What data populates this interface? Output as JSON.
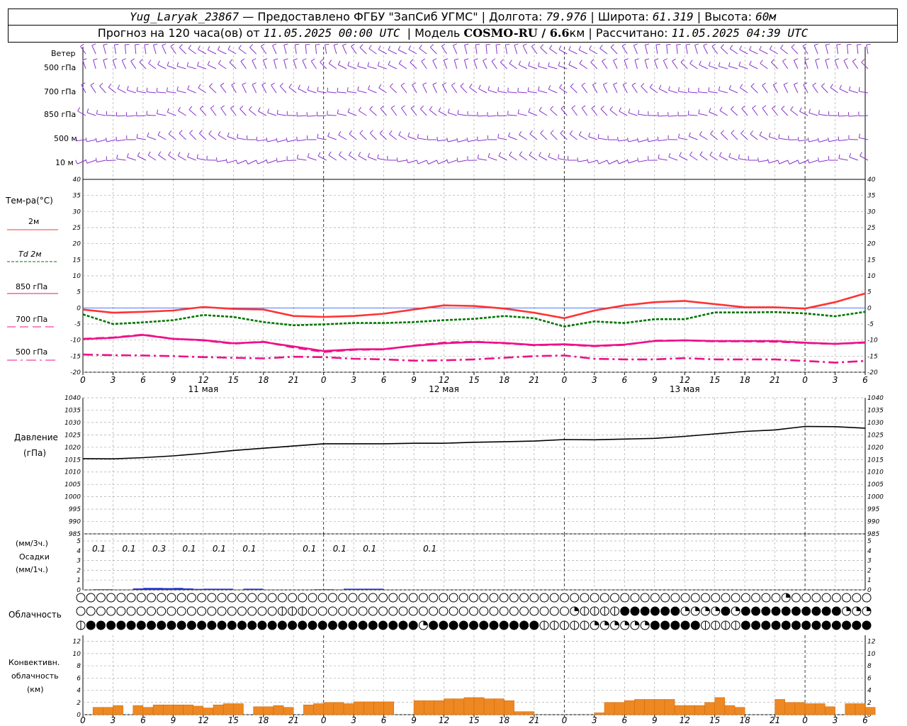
{
  "header": {
    "station": "Yug_Laryak_23867",
    "provider": "— Предоставлено ФГБУ \"ЗапСиб УГМС\"",
    "lon_label": "Долгота:",
    "lon": "79.976",
    "lat_label": "Широта:",
    "lat": "61.319",
    "alt_label": "Высота:",
    "alt": "60м",
    "forecast_label": "Прогноз на 120 часа(ов) от",
    "forecast_start": "11.05.2025 00:00 UTC",
    "model_label": "Модель",
    "model": "COSMO-RU / 6.6",
    "model_unit": "км",
    "calc_label": "Рассчитано:",
    "calc_time": "11.05.2025 04:39 UTC"
  },
  "wind_panel": {
    "title": "Ветер",
    "levels": [
      "500 гПа",
      "700 гПа",
      "850 гПа",
      "500 м",
      "10  м"
    ]
  },
  "temp_panel": {
    "title": "Тем-ра(°С)",
    "legend": [
      {
        "label": "2м",
        "color": "#ff3333",
        "dash": ""
      },
      {
        "label": "Td  2м",
        "color": "#007700",
        "dash": "4,2"
      },
      {
        "label": "850  гПа",
        "color": "#ee1188",
        "dash": ""
      },
      {
        "label": "700  гПа",
        "color": "#ee1188",
        "dash": "12,6"
      },
      {
        "label": "500  гПа",
        "color": "#ee1188",
        "dash": "14,5,3,5"
      }
    ]
  },
  "time_axis": {
    "hour_labels": [
      "0",
      "3",
      "6",
      "9",
      "12",
      "15",
      "18",
      "21",
      "0",
      "3",
      "6",
      "9",
      "12",
      "15",
      "18",
      "21",
      "0",
      "3",
      "6",
      "9",
      "12",
      "15",
      "18",
      "21",
      "0",
      "3",
      "6"
    ],
    "dates": [
      "11 мая",
      "12 мая",
      "13 мая"
    ]
  },
  "pressure_panel": {
    "title": "Давление",
    "unit": "(гПа)"
  },
  "precip_panel": {
    "unit_3h": "(мм/3ч.)",
    "title": "Осадки",
    "unit_1h": "(мм/1ч.)",
    "amounts": [
      {
        "hour": 0.5,
        "text": "0.1"
      },
      {
        "hour": 3.5,
        "text": "0.1"
      },
      {
        "hour": 6.5,
        "text": "0.3"
      },
      {
        "hour": 9.5,
        "text": "0.1"
      },
      {
        "hour": 12.5,
        "text": "0.1"
      },
      {
        "hour": 15.5,
        "text": "0.1"
      },
      {
        "hour": 21.5,
        "text": "0.1"
      },
      {
        "hour": 24.5,
        "text": "0.1"
      },
      {
        "hour": 27.5,
        "text": "0.1"
      },
      {
        "hour": 33.5,
        "text": "0.1"
      }
    ]
  },
  "cloud_panel": {
    "title": "Облачность"
  },
  "conv_panel": {
    "title_1": "Конвективн.",
    "title_2": "облачность",
    "unit": "(км)"
  },
  "chart_data": [
    {
      "type": "line",
      "title": "Тем-ра(°С)",
      "x_hours": [
        0,
        3,
        6,
        9,
        12,
        15,
        18,
        21,
        24,
        27,
        30,
        33,
        36,
        39,
        42,
        45,
        48,
        51,
        54,
        57,
        60,
        63,
        66,
        69,
        72,
        75,
        78
      ],
      "ylim": [
        -20,
        40
      ],
      "yticks": [
        -20,
        -15,
        -10,
        -5,
        0,
        5,
        10,
        15,
        20,
        25,
        30,
        35,
        40
      ],
      "series": [
        {
          "name": "2м",
          "values": [
            -0.5,
            -1.5,
            -1.2,
            -0.8,
            0.3,
            -0.3,
            -0.5,
            -2.5,
            -2.8,
            -2.5,
            -1.8,
            -0.5,
            0.8,
            0.6,
            -0.2,
            -1.5,
            -3.2,
            -0.8,
            0.8,
            1.8,
            2.2,
            1.2,
            0.2,
            0.2,
            -0.2,
            1.8,
            4.5
          ]
        },
        {
          "name": "Td  2м",
          "values": [
            -2,
            -5,
            -4.5,
            -3.8,
            -2.2,
            -2.8,
            -4.4,
            -5.4,
            -5.1,
            -4.7,
            -4.7,
            -4.4,
            -3.8,
            -3.4,
            -2.5,
            -3.2,
            -5.8,
            -4.2,
            -4.7,
            -3.5,
            -3.5,
            -1.4,
            -1.4,
            -1.3,
            -1.7,
            -2.6,
            -1.2
          ]
        },
        {
          "name": "850  гПа",
          "values": [
            -9.7,
            -9.3,
            -8.4,
            -9.6,
            -10,
            -11,
            -10.6,
            -12,
            -13.4,
            -12.9,
            -12.8,
            -11.8,
            -11,
            -10.6,
            -10.9,
            -11.5,
            -11.3,
            -11.8,
            -11.4,
            -10.3,
            -10.1,
            -10.3,
            -10.3,
            -10.3,
            -10.8,
            -11.2,
            -10.7
          ]
        },
        {
          "name": "700  гПа",
          "values": [
            -9.6,
            -9.2,
            -8.3,
            -9.6,
            -10.1,
            -11.1,
            -10.5,
            -12.3,
            -13.7,
            -13,
            -12.9,
            -11.7,
            -10.8,
            -10.5,
            -11,
            -11.6,
            -11.4,
            -11.9,
            -11.5,
            -10.2,
            -10.1,
            -10.4,
            -10.4,
            -10.5,
            -10.9,
            -11.2,
            -10.8
          ]
        },
        {
          "name": "500  гПа",
          "values": [
            -14.5,
            -14.7,
            -14.8,
            -15,
            -15.3,
            -15.5,
            -15.7,
            -15.2,
            -15.3,
            -15.8,
            -16,
            -16.4,
            -16.3,
            -16,
            -15.5,
            -15,
            -14.8,
            -15.8,
            -16,
            -16,
            -15.6,
            -16,
            -16,
            -16,
            -16.5,
            -17,
            -16.5
          ]
        }
      ]
    },
    {
      "type": "line",
      "title": "Давление",
      "ylabel": "(гПа)",
      "x_hours": [
        0,
        3,
        6,
        9,
        12,
        15,
        18,
        21,
        24,
        27,
        30,
        33,
        36,
        39,
        42,
        45,
        48,
        51,
        54,
        57,
        60,
        63,
        66,
        69,
        72,
        75,
        78
      ],
      "ylim": [
        985,
        1040
      ],
      "yticks": [
        985,
        990,
        995,
        1000,
        1005,
        1010,
        1015,
        1020,
        1025,
        1030,
        1035,
        1040
      ],
      "series": [
        {
          "name": "Давление",
          "values": [
            1015.4,
            1015.3,
            1015.8,
            1016.5,
            1017.5,
            1018.7,
            1019.6,
            1020.5,
            1021.4,
            1021.4,
            1021.4,
            1021.6,
            1021.6,
            1022.0,
            1022.2,
            1022.5,
            1023.1,
            1023.0,
            1023.3,
            1023.6,
            1024.4,
            1025.4,
            1026.4,
            1027.0,
            1028.4,
            1028.3,
            1027.7
          ]
        }
      ]
    },
    {
      "type": "bar",
      "title": "Осадки",
      "ylabel": "(мм/1ч.)",
      "ylim": [
        0,
        5
      ],
      "hours": [
        2,
        3,
        4,
        5,
        6,
        7,
        8,
        9,
        10,
        11,
        12,
        13,
        14,
        15,
        16,
        17,
        18,
        19,
        20,
        21,
        22,
        23,
        24,
        25,
        26,
        27,
        28,
        29,
        30,
        31,
        32,
        33,
        34,
        35,
        36,
        37,
        38,
        39,
        40,
        41,
        42,
        43,
        44,
        45,
        46,
        47,
        48,
        49,
        50,
        51,
        52,
        53,
        54,
        55,
        56,
        57,
        58,
        59,
        60,
        61,
        62,
        63,
        64,
        65,
        66,
        67,
        68,
        69,
        70,
        71,
        72,
        73,
        74,
        75,
        76,
        77,
        78
      ],
      "values": [
        0.06,
        0.06,
        0.03,
        0.03,
        0.15,
        0.2,
        0.2,
        0.18,
        0.2,
        0.15,
        0.1,
        0.12,
        0.12,
        0.12,
        0.03,
        0.12,
        0.12,
        0.03,
        0.02,
        0.0,
        0.0,
        0.0,
        0.06,
        0.06,
        0.04,
        0.12,
        0.12,
        0.12,
        0.12,
        0.02,
        0.0,
        0.0,
        0.0,
        0.03,
        0.03,
        0.0,
        0.0,
        0.0,
        0.0,
        0.0,
        0.0,
        0.0,
        0.0,
        0.0,
        0.0,
        0.0,
        0.0,
        0.0,
        0.0,
        0.0,
        0.0,
        0.0,
        0.0,
        0.0,
        0.0,
        0.0,
        0.0,
        0.0,
        0.03,
        0.0,
        0.0,
        0.0,
        0.0,
        0.0,
        0.0,
        0.0,
        0.0,
        0.0,
        0.0,
        0.0,
        0.0,
        0.0,
        0.0,
        0.0,
        0.0,
        0.0,
        0.0
      ]
    },
    {
      "type": "bar",
      "title": "Конвективн. облачность",
      "ylabel": "(км)",
      "ylim": [
        0,
        13
      ],
      "hours": [
        0,
        1,
        2,
        3,
        4,
        5,
        6,
        7,
        8,
        9,
        10,
        11,
        12,
        13,
        14,
        15,
        16,
        17,
        18,
        19,
        20,
        21,
        22,
        23,
        24,
        25,
        26,
        27,
        28,
        29,
        30,
        31,
        32,
        33,
        34,
        35,
        36,
        37,
        38,
        39,
        40,
        41,
        42,
        43,
        44,
        45,
        46,
        47,
        48,
        49,
        50,
        51,
        52,
        53,
        54,
        55,
        56,
        57,
        58,
        59,
        60,
        61,
        62,
        63,
        64,
        65,
        66,
        67,
        68,
        69,
        70,
        71,
        72,
        73,
        74,
        75,
        76,
        77,
        78
      ],
      "values": [
        0,
        1.2,
        1.2,
        1.5,
        0,
        1.5,
        1.2,
        1.6,
        1.6,
        1.6,
        1.6,
        1.4,
        1.1,
        1.6,
        1.8,
        1.8,
        0,
        1.3,
        1.3,
        1.5,
        1.2,
        0,
        1.6,
        1.8,
        2.0,
        2.0,
        1.8,
        2.1,
        2.1,
        2.1,
        2.1,
        0,
        0,
        2.3,
        2.3,
        2.3,
        2.6,
        2.6,
        2.8,
        2.8,
        2.6,
        2.6,
        2.3,
        0.5,
        0.5,
        0,
        0,
        0,
        0,
        0,
        0,
        0.3,
        2.0,
        2.0,
        2.3,
        2.5,
        2.5,
        2.5,
        2.5,
        1.5,
        1.5,
        1.5,
        2.0,
        2.8,
        1.5,
        1.2,
        0,
        0,
        0,
        2.5,
        2.0,
        2.0,
        1.8,
        1.8,
        1.3,
        0,
        1.8,
        1.8,
        1.2
      ]
    }
  ],
  "cloud_rows": {
    "upper": "eeeeeeeeeeeeeeeeeeeeeeeeeeeeeeeeeeeeeeeeeeeeeeeeeeeeeeeeeeeeeeeeeeeeeeqeeeeeeeeeeeeeeeeeeeeeeeeeeeeeeeeeeeeeeeeeeeeeeeeeeeeeeeeeeeeeeeeeeeeeeeeeeeeeeeeeee",
    "middle": "eeeeeeeeeeeeeeeeeeeehhheeeeeeeeeeeeeeeeeeeeeeeeeeqhhhhffffffqqqqfqffffffffffqqqqqfffffffffqqqqqqffffffffffffqqqqqeeeeeeeeeeeeeeeeeeeeeeeeeeeeeeeeeeeeeeeeeeee",
    "lower": "hfffffffffffffffffffffffffffffffffqfffffffffffhhhhhqqqqqqfffffhhhhffffffffffffffffffffffffffffffffffffffffffffffffffffffffffffffffffffffff"
  }
}
